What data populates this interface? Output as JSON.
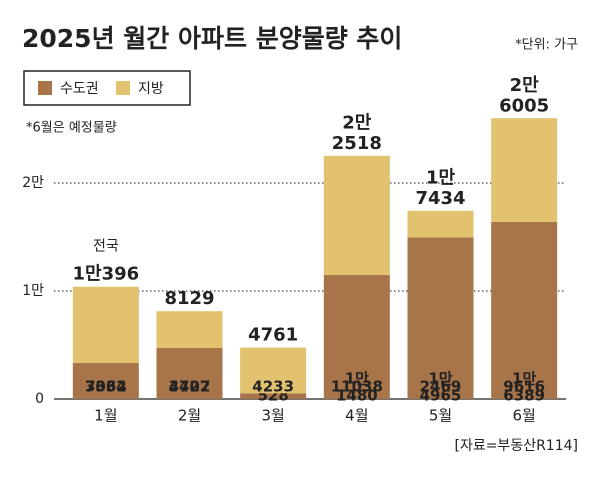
{
  "chart_data": {
    "type": "stacked_bar",
    "title": "2025년 월간 아파트 분양물량 추이",
    "unit_note": "*단위: 가구",
    "footnote": "*6월은 예정물량",
    "source": "[자료=부동산R114]",
    "annotation": "전국",
    "categories": [
      "1월",
      "2월",
      "3월",
      "4월",
      "5월",
      "6월"
    ],
    "series": [
      {
        "name": "수도권",
        "color": "#a8754a",
        "values": [
          3332,
          4727,
          528,
          11480,
          14965,
          16389
        ],
        "value_labels": [
          "3332",
          "4727",
          "528",
          "1만\n1480",
          "1만\n4965",
          "1만\n6389"
        ]
      },
      {
        "name": "지방",
        "color": "#e2c16f",
        "values": [
          7064,
          3402,
          4233,
          11038,
          2469,
          9616
        ]
      }
    ],
    "total_labels": [
      "1만396",
      "8129",
      "4761",
      "2만\n2518",
      "1만\n7434",
      "2만\n6005"
    ],
    "ylim": [
      0,
      30000
    ],
    "yticks": [
      0,
      {
        "value": 10000,
        "label": "1만"
      },
      {
        "value": 20000,
        "label": "2만"
      }
    ],
    "grid": true
  }
}
